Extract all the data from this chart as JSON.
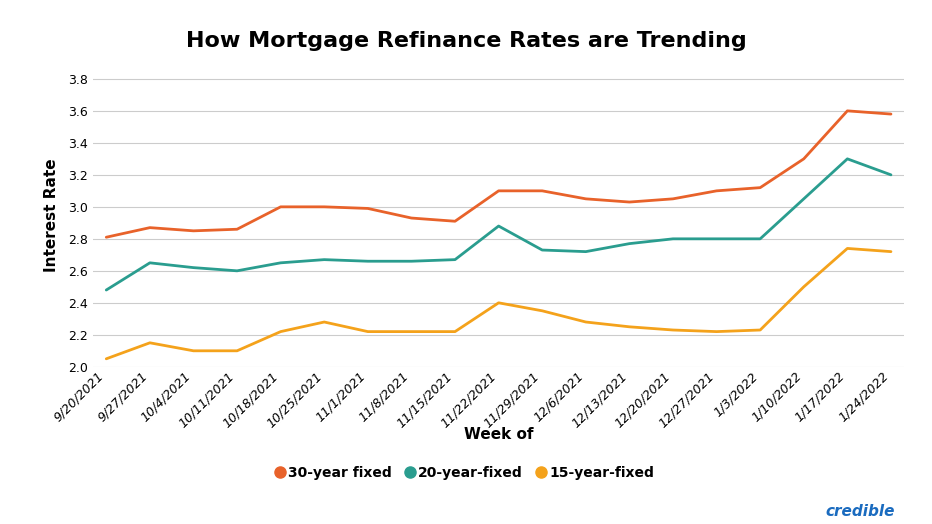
{
  "title": "How Mortgage Refinance Rates are Trending",
  "xlabel": "Week of",
  "ylabel": "Interest Rate",
  "xlabels": [
    "9/20/2021",
    "9/27/2021",
    "10/4/2021",
    "10/11/2021",
    "10/18/2021",
    "10/25/2021",
    "11/1/2021",
    "11/8/2021",
    "11/15/2021",
    "11/22/2021",
    "11/29/2021",
    "12/6/2021",
    "12/13/2021",
    "12/20/2021",
    "12/27/2021",
    "1/3/2022",
    "1/10/2022",
    "1/17/2022",
    "1/24/2022"
  ],
  "y30": [
    2.81,
    2.87,
    2.85,
    2.86,
    3.0,
    3.0,
    2.99,
    2.93,
    2.91,
    3.1,
    3.1,
    3.05,
    3.03,
    3.05,
    3.1,
    3.12,
    3.3,
    3.6,
    3.58
  ],
  "y20": [
    2.48,
    2.65,
    2.62,
    2.6,
    2.65,
    2.67,
    2.66,
    2.66,
    2.67,
    2.88,
    2.73,
    2.72,
    2.77,
    2.8,
    2.8,
    2.8,
    3.05,
    3.3,
    3.2
  ],
  "y15": [
    2.05,
    2.15,
    2.1,
    2.1,
    2.22,
    2.28,
    2.22,
    2.22,
    2.22,
    2.4,
    2.35,
    2.28,
    2.25,
    2.23,
    2.22,
    2.23,
    2.5,
    2.74,
    2.72
  ],
  "color30": "#e8622a",
  "color20": "#2a9d8f",
  "color15": "#f4a21b",
  "ylim": [
    2.0,
    3.9
  ],
  "yticks": [
    2.0,
    2.2,
    2.4,
    2.6,
    2.8,
    3.0,
    3.2,
    3.4,
    3.6,
    3.8
  ],
  "background_color": "#ffffff",
  "grid_color": "#cccccc",
  "legend_labels": [
    "30-year fixed",
    "20-year-fixed",
    "15-year-fixed"
  ],
  "credible_color": "#1a6bbf",
  "title_fontsize": 16,
  "axis_label_fontsize": 11,
  "tick_fontsize": 9,
  "legend_fontsize": 10
}
